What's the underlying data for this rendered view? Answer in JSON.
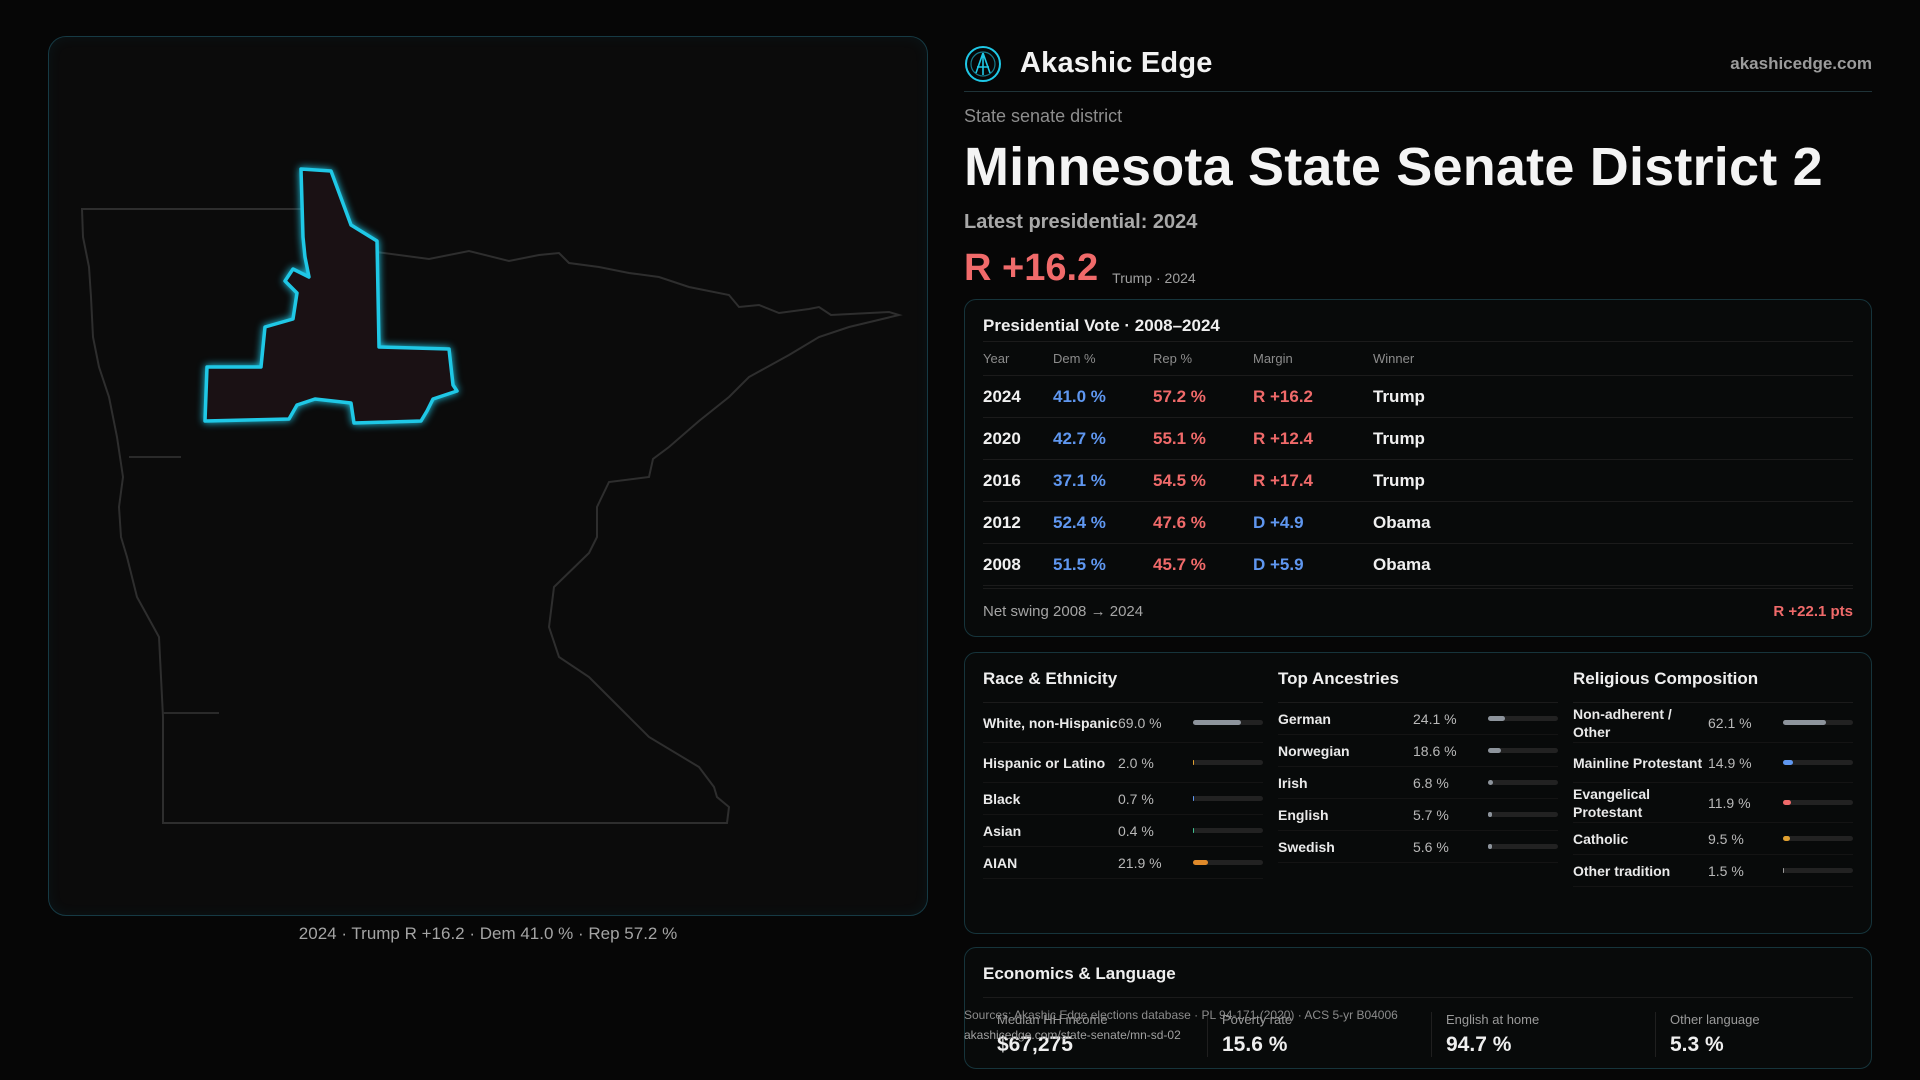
{
  "brand": {
    "name": "Akashic Edge",
    "url": "akashicedge.com"
  },
  "district": {
    "type_label": "State senate district",
    "title": "Minnesota State Senate District 2",
    "latest_label": "Latest presidential: 2024",
    "margin": "R +16.2",
    "margin_sub": "Trump · 2024"
  },
  "map": {
    "caption": "2024 · Trump R +16.2 · Dem 41.0 % · Rep 57.2 %",
    "highlight_color": "#1fc8e6"
  },
  "presidential": {
    "title": "Presidential Vote · 2008–2024",
    "headers": [
      "Year",
      "Dem %",
      "Rep %",
      "Margin",
      "Winner"
    ],
    "rows": [
      {
        "year": "2024",
        "dem": "41.0 %",
        "rep": "57.2 %",
        "margin": "R +16.2",
        "party": "R",
        "winner": "Trump"
      },
      {
        "year": "2020",
        "dem": "42.7 %",
        "rep": "55.1 %",
        "margin": "R +12.4",
        "party": "R",
        "winner": "Trump"
      },
      {
        "year": "2016",
        "dem": "37.1 %",
        "rep": "54.5 %",
        "margin": "R +17.4",
        "party": "R",
        "winner": "Trump"
      },
      {
        "year": "2012",
        "dem": "52.4 %",
        "rep": "47.6 %",
        "margin": "D +4.9",
        "party": "D",
        "winner": "Obama"
      },
      {
        "year": "2008",
        "dem": "51.5 %",
        "rep": "45.7 %",
        "margin": "D +5.9",
        "party": "D",
        "winner": "Obama"
      }
    ],
    "swing_label": "Net swing 2008 → 2024",
    "swing_value": "R +22.1 pts"
  },
  "race": {
    "title": "Race & Ethnicity",
    "rows": [
      {
        "label": "White, non-Hispanic",
        "value": "69.0 %",
        "pct": 69.0,
        "color": "#8d949c"
      },
      {
        "label": "Hispanic or Latino",
        "value": "2.0 %",
        "pct": 2.0,
        "color": "#e0a030"
      },
      {
        "label": "Black",
        "value": "0.7 %",
        "pct": 0.7,
        "color": "#5f97f0"
      },
      {
        "label": "Asian",
        "value": "0.4 %",
        "pct": 0.4,
        "color": "#40c090"
      },
      {
        "label": "AIAN",
        "value": "21.9 %",
        "pct": 21.9,
        "color": "#e08a2a"
      }
    ]
  },
  "ancestry": {
    "title": "Top Ancestries",
    "rows": [
      {
        "label": "German",
        "value": "24.1 %",
        "pct": 24.1,
        "color": "#8d949c"
      },
      {
        "label": "Norwegian",
        "value": "18.6 %",
        "pct": 18.6,
        "color": "#8d949c"
      },
      {
        "label": "Irish",
        "value": "6.8 %",
        "pct": 6.8,
        "color": "#8d949c"
      },
      {
        "label": "English",
        "value": "5.7 %",
        "pct": 5.7,
        "color": "#8d949c"
      },
      {
        "label": "Swedish",
        "value": "5.6 %",
        "pct": 5.6,
        "color": "#8d949c"
      }
    ]
  },
  "religion": {
    "title": "Religious Composition",
    "rows": [
      {
        "label": "Non-adherent / Other",
        "value": "62.1 %",
        "pct": 62.1,
        "color": "#8d949c"
      },
      {
        "label": "Mainline Protestant",
        "value": "14.9 %",
        "pct": 14.9,
        "color": "#5f97f0"
      },
      {
        "label": "Evangelical Protestant",
        "value": "11.9 %",
        "pct": 11.9,
        "color": "#f06a6a"
      },
      {
        "label": "Catholic",
        "value": "9.5 %",
        "pct": 9.5,
        "color": "#e0a030"
      },
      {
        "label": "Other tradition",
        "value": "1.5 %",
        "pct": 1.5,
        "color": "#9a9a9a"
      }
    ]
  },
  "economics": {
    "title": "Economics & Language",
    "cells": [
      {
        "label": "Median HH income",
        "value": "$67,275"
      },
      {
        "label": "Poverty rate",
        "value": "15.6 %"
      },
      {
        "label": "English at home",
        "value": "94.7 %"
      },
      {
        "label": "Other language",
        "value": "5.3 %"
      }
    ]
  },
  "source": {
    "text": "Sources: Akashic Edge elections database · PL 94-171 (2020) · ACS 5-yr B04006",
    "url": "akashicedge.com/state-senate/mn-sd-02"
  },
  "colors": {
    "dem": "#5f97f0",
    "rep": "#f06a6a",
    "accent": "#1fc8e6"
  }
}
